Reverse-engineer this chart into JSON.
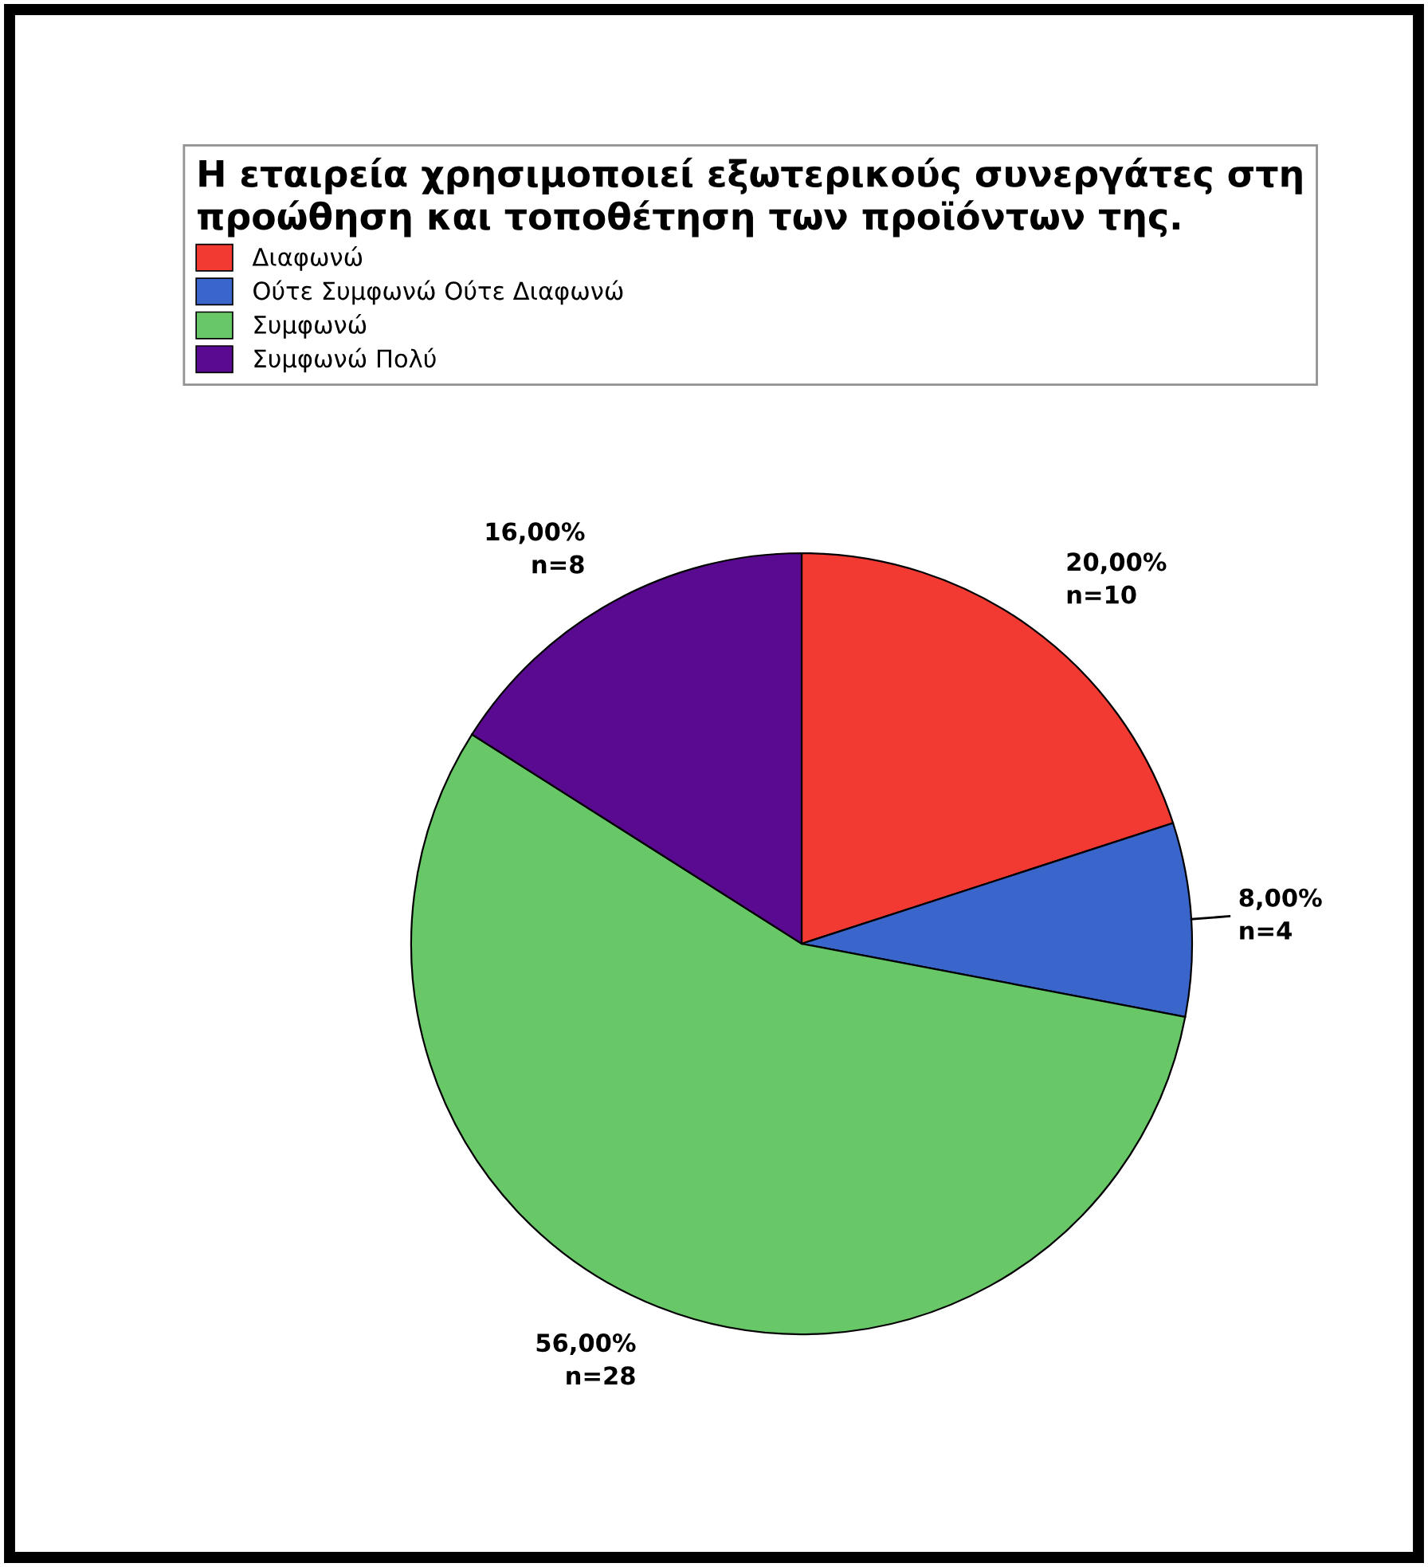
{
  "chart_data": {
    "type": "pie",
    "legend_title": "Η εταιρεία χρησιμοποιεί εξωτερικούς συνεργάτες στη\nπροώθηση και τοποθέτηση των προϊόντων της.",
    "categories": [
      "Διαφωνώ",
      "Ούτε Συμφωνώ Ούτε Διαφωνώ",
      "Συμφωνώ",
      "Συμφωνώ Πολύ"
    ],
    "values": [
      20,
      8,
      56,
      16
    ],
    "colors": [
      "#f23a33",
      "#3a66cc",
      "#68c868",
      "#5a0a90"
    ],
    "value_labels": [
      "20,00%\nn=10",
      "8,00%\nn=4",
      "56,00%\nn=28",
      "16,00%\nn=8"
    ],
    "legend": "top"
  }
}
